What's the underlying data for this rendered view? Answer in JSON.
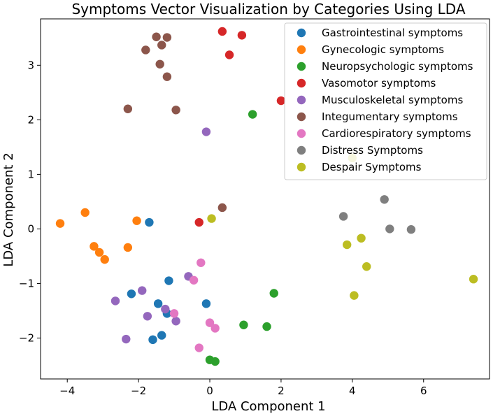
{
  "chart_data": {
    "type": "scatter",
    "title": "Symptoms Vector Visualization by Categories Using LDA",
    "xlabel": "LDA Component 1",
    "ylabel": "LDA Component 2",
    "xlim": [
      -4.75,
      7.85
    ],
    "ylim": [
      -2.75,
      3.85
    ],
    "xticks": [
      -4,
      -2,
      0,
      2,
      4,
      6
    ],
    "yticks": [
      -2,
      -1,
      0,
      1,
      2,
      3
    ],
    "xtick_labels": [
      "−4",
      "−2",
      "0",
      "2",
      "4",
      "6"
    ],
    "ytick_labels": [
      "−2",
      "−1",
      "0",
      "1",
      "2",
      "3"
    ],
    "grid": false,
    "legend_position": "upper-right",
    "series": [
      {
        "name": "Gastrointestinal symptoms",
        "color": "#1f77b4",
        "points": [
          [
            -1.7,
            0.12
          ],
          [
            -2.2,
            -1.19
          ],
          [
            -1.15,
            -0.95
          ],
          [
            -1.45,
            -1.37
          ],
          [
            -1.2,
            -1.55
          ],
          [
            -1.35,
            -1.95
          ],
          [
            -1.6,
            -2.03
          ],
          [
            -0.1,
            -1.37
          ]
        ]
      },
      {
        "name": "Gynecologic symptoms",
        "color": "#ff7f0e",
        "points": [
          [
            -4.2,
            0.1
          ],
          [
            -3.5,
            0.3
          ],
          [
            -2.05,
            0.15
          ],
          [
            -3.25,
            -0.32
          ],
          [
            -3.1,
            -0.43
          ],
          [
            -2.95,
            -0.56
          ],
          [
            -2.3,
            -0.34
          ]
        ]
      },
      {
        "name": "Neuropsychologic symptoms",
        "color": "#2ca02c",
        "points": [
          [
            1.2,
            2.1
          ],
          [
            1.8,
            -1.18
          ],
          [
            0.95,
            -1.76
          ],
          [
            1.6,
            -1.79
          ],
          [
            0.0,
            -2.4
          ],
          [
            0.15,
            -2.43
          ]
        ]
      },
      {
        "name": "Vasomotor symptoms",
        "color": "#d62728",
        "points": [
          [
            0.35,
            3.62
          ],
          [
            0.9,
            3.55
          ],
          [
            0.55,
            3.19
          ],
          [
            2.0,
            2.35
          ],
          [
            -0.3,
            0.12
          ]
        ]
      },
      {
        "name": "Musculoskeletal symptoms",
        "color": "#9467bd",
        "points": [
          [
            -0.1,
            1.78
          ],
          [
            -0.6,
            -0.87
          ],
          [
            -1.9,
            -1.13
          ],
          [
            -1.25,
            -1.47
          ],
          [
            -2.65,
            -1.32
          ],
          [
            -1.75,
            -1.6
          ],
          [
            -0.95,
            -1.69
          ],
          [
            -2.35,
            -2.02
          ]
        ]
      },
      {
        "name": "Integumentary symptoms",
        "color": "#8c564b",
        "points": [
          [
            -1.5,
            3.52
          ],
          [
            -1.2,
            3.51
          ],
          [
            -1.35,
            3.37
          ],
          [
            -1.8,
            3.28
          ],
          [
            -1.4,
            3.02
          ],
          [
            -1.2,
            2.79
          ],
          [
            -2.3,
            2.2
          ],
          [
            -0.95,
            2.18
          ],
          [
            0.35,
            0.39
          ]
        ]
      },
      {
        "name": "Cardiorespiratory symptoms",
        "color": "#e377c2",
        "points": [
          [
            -0.25,
            -0.62
          ],
          [
            -0.45,
            -0.94
          ],
          [
            -1.0,
            -1.55
          ],
          [
            0.0,
            -1.72
          ],
          [
            0.15,
            -1.82
          ],
          [
            -0.3,
            -2.18
          ]
        ]
      },
      {
        "name": "Distress Symptoms",
        "color": "#7f7f7f",
        "points": [
          [
            4.9,
            0.54
          ],
          [
            3.75,
            0.23
          ],
          [
            5.05,
            0.0
          ],
          [
            5.65,
            -0.01
          ]
        ]
      },
      {
        "name": "Despair Symptoms",
        "color": "#bcbd22",
        "points": [
          [
            4.0,
            1.3
          ],
          [
            0.05,
            0.19
          ],
          [
            4.25,
            -0.17
          ],
          [
            3.85,
            -0.29
          ],
          [
            4.4,
            -0.69
          ],
          [
            7.4,
            -0.92
          ],
          [
            4.05,
            -1.22
          ]
        ]
      }
    ]
  }
}
